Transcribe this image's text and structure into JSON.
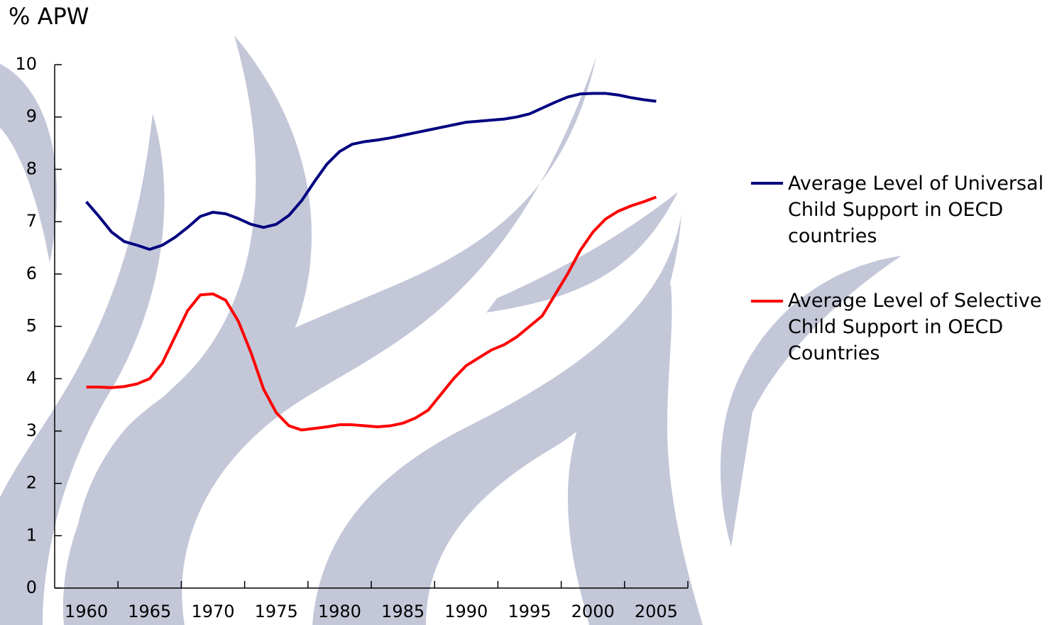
{
  "chart_data": {
    "type": "line",
    "y_label": "% APW",
    "x": [
      1960,
      1961,
      1962,
      1963,
      1964,
      1965,
      1966,
      1967,
      1968,
      1969,
      1970,
      1971,
      1972,
      1973,
      1974,
      1975,
      1976,
      1977,
      1978,
      1979,
      1980,
      1981,
      1982,
      1983,
      1984,
      1985,
      1986,
      1987,
      1988,
      1989,
      1990,
      1991,
      1992,
      1993,
      1994,
      1995,
      1996,
      1997,
      1998,
      1999,
      2000,
      2001,
      2002,
      2003,
      2004,
      2005
    ],
    "series": [
      {
        "name": "Average Level of Universal Child Support in OECD countries",
        "color": "#000080",
        "values": [
          7.38,
          7.1,
          6.8,
          6.62,
          6.55,
          6.47,
          6.55,
          6.7,
          6.89,
          7.1,
          7.18,
          7.15,
          7.06,
          6.95,
          6.89,
          6.95,
          7.12,
          7.4,
          7.76,
          8.1,
          8.34,
          8.48,
          8.53,
          8.56,
          8.6,
          8.65,
          8.7,
          8.75,
          8.8,
          8.85,
          8.9,
          8.92,
          8.94,
          8.96,
          9.0,
          9.06,
          9.17,
          9.28,
          9.38,
          9.44,
          9.45,
          9.45,
          9.42,
          9.37,
          9.33,
          9.3
        ]
      },
      {
        "name": "Average Level of Selective Child Support in OECD Countries",
        "color": "#ff0000",
        "values": [
          3.84,
          3.84,
          3.83,
          3.85,
          3.9,
          4.0,
          4.3,
          4.8,
          5.3,
          5.6,
          5.62,
          5.5,
          5.1,
          4.5,
          3.8,
          3.35,
          3.1,
          3.02,
          3.05,
          3.08,
          3.12,
          3.12,
          3.1,
          3.08,
          3.1,
          3.15,
          3.25,
          3.4,
          3.7,
          4.0,
          4.25,
          4.4,
          4.55,
          4.65,
          4.8,
          5.0,
          5.2,
          5.6,
          6.0,
          6.45,
          6.8,
          7.05,
          7.2,
          7.3,
          7.38,
          7.47
        ]
      }
    ],
    "xlim": [
      1957.5,
      2007.5
    ],
    "xticks": [
      1960,
      1965,
      1970,
      1975,
      1980,
      1985,
      1990,
      1995,
      2000,
      2005
    ],
    "ylim": [
      0,
      10
    ],
    "yticks": [
      0,
      1,
      2,
      3,
      4,
      5,
      6,
      7,
      8,
      9,
      10
    ],
    "legend": "right"
  }
}
